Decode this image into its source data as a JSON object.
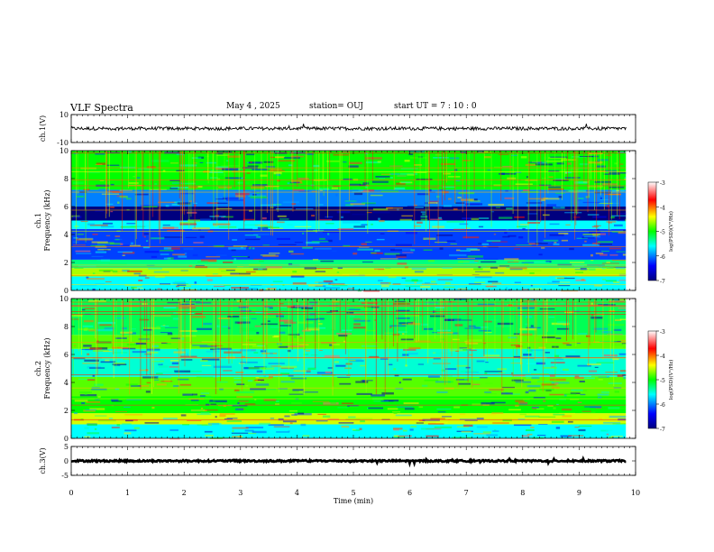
{
  "header": {
    "title": "VLF Spectra",
    "date": "May 4 , 2025",
    "station": "station= OUJ",
    "start": "start  UT =   7 : 10 : 0"
  },
  "chart_data": [
    {
      "type": "line",
      "name": "waveform-ch1",
      "ylabel": "ch.1(V)",
      "ylim": [
        -10,
        10
      ],
      "yticks": [
        "10",
        "-10"
      ],
      "xlim": [
        0,
        10
      ],
      "mean": 0,
      "amplitude": 1.2
    },
    {
      "type": "heatmap",
      "name": "spectrogram-ch1",
      "ylabel": "ch.1\nFrequency (kHz)",
      "ylim": [
        0,
        10
      ],
      "yticks": [
        "10",
        "8",
        "6",
        "4",
        "2",
        "0"
      ],
      "xlim": [
        0,
        10
      ],
      "data_end_min": 9.83,
      "colorbar": {
        "label": "log(PSD)(V²/Hz)",
        "range": [
          -7,
          -3
        ],
        "ticks": [
          "-3",
          "-4",
          "-5",
          "-6",
          "-7"
        ]
      },
      "bands": [
        {
          "f": [
            0,
            1.0
          ],
          "level": -5.6
        },
        {
          "f": [
            1.0,
            1.6
          ],
          "level": -4.6
        },
        {
          "f": [
            1.6,
            2.2
          ],
          "level": -5.3
        },
        {
          "f": [
            2.2,
            4.4
          ],
          "level": -6.2
        },
        {
          "f": [
            4.4,
            5.0
          ],
          "level": -5.6
        },
        {
          "f": [
            5.0,
            6.0
          ],
          "level": -7.0
        },
        {
          "f": [
            6.0,
            7.2
          ],
          "level": -6.0
        },
        {
          "f": [
            7.2,
            10.0
          ],
          "level": -5.0
        }
      ]
    },
    {
      "type": "heatmap",
      "name": "spectrogram-ch2",
      "ylabel": "ch.2\nFrequency (kHz)",
      "ylim": [
        0,
        10
      ],
      "yticks": [
        "10",
        "8",
        "6",
        "4",
        "2",
        "0"
      ],
      "xlim": [
        0,
        10
      ],
      "data_end_min": 9.83,
      "colorbar": {
        "label": "log(PSD)(V²/Hz)",
        "range": [
          -7,
          -3
        ],
        "ticks": [
          "-3",
          "-4",
          "-5",
          "-6",
          "-7"
        ]
      },
      "bands": [
        {
          "f": [
            0,
            1.0
          ],
          "level": -5.6
        },
        {
          "f": [
            1.0,
            1.8
          ],
          "level": -4.5
        },
        {
          "f": [
            1.8,
            3.0
          ],
          "level": -5.0
        },
        {
          "f": [
            3.0,
            4.4
          ],
          "level": -4.8
        },
        {
          "f": [
            4.4,
            6.4
          ],
          "level": -5.5
        },
        {
          "f": [
            6.4,
            7.4
          ],
          "level": -4.8
        },
        {
          "f": [
            7.4,
            10.0
          ],
          "level": -5.2
        }
      ]
    },
    {
      "type": "line",
      "name": "waveform-ch3",
      "ylabel": "ch.3(V)",
      "ylim": [
        -5,
        5
      ],
      "yticks": [
        "5",
        "0",
        "-5"
      ],
      "xlim": [
        0,
        10
      ],
      "mean": 0,
      "amplitude": 0.3
    }
  ],
  "x_axis": {
    "label": "Time  (min)",
    "ticks": [
      "0",
      "1",
      "2",
      "3",
      "4",
      "5",
      "6",
      "7",
      "8",
      "9",
      "10"
    ]
  }
}
